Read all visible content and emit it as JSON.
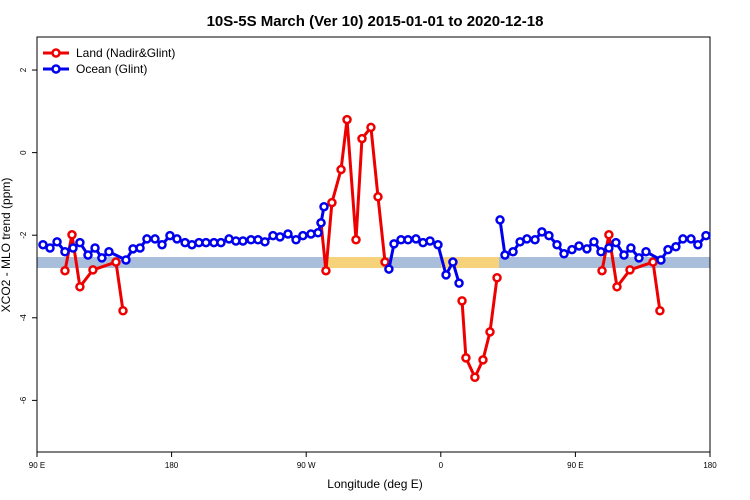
{
  "chart_data": {
    "type": "line",
    "title": "10S-5S March (Ver 10)   2015-01-01 to 2020-12-18",
    "xlabel": "Longitude (deg E)",
    "ylabel": "XCO2 - MLO trend (ppm)",
    "xlim": [
      90,
      540
    ],
    "ylim": [
      -7.25,
      2.8
    ],
    "xticks": [
      {
        "value": 90,
        "label": "90 E"
      },
      180,
      {
        "value": 270,
        "label": "90 W"
      },
      {
        "value": 360,
        "label": "0"
      },
      {
        "value": 450,
        "label": "90 E"
      },
      {
        "value": 540,
        "label": "180"
      }
    ],
    "yticks": [
      -6,
      -4,
      -2,
      0,
      2
    ],
    "legend": "top-left",
    "series": [
      {
        "name": "Land (Nadir&Glint)",
        "color": "#ee0000",
        "x": [
          108.7,
          113.4,
          118.7,
          127.4,
          142.8,
          147.5,
          null,
          279.9,
          283.2,
          287.2,
          293.3,
          297.3,
          303.3,
          307.3,
          313.3,
          318.0,
          322.7,
          null,
          374.2,
          376.8,
          382.8,
          388.2,
          392.9,
          397.6,
          null,
          467.8,
          472.4,
          477.8,
          486.5,
          501.9,
          506.5
        ],
        "values": [
          -2.86,
          -1.99,
          -3.25,
          -2.84,
          -2.65,
          -3.83,
          null,
          -1.7,
          -2.86,
          -1.21,
          -0.41,
          0.8,
          -2.11,
          0.34,
          0.61,
          -1.07,
          -2.65,
          null,
          -3.59,
          -4.97,
          -5.44,
          -5.02,
          -4.34,
          -3.03,
          null,
          -2.86,
          -1.99,
          -3.25,
          -2.84,
          -2.65,
          -3.83
        ]
      },
      {
        "name": "Ocean (Glint)",
        "color": "#0000ee",
        "x": [
          94.0,
          98.7,
          103.4,
          108.7,
          114.1,
          118.7,
          124.1,
          128.8,
          133.4,
          138.1,
          149.5,
          154.2,
          158.9,
          163.5,
          168.9,
          173.6,
          178.9,
          183.6,
          189.0,
          193.6,
          198.3,
          203.0,
          208.3,
          213.0,
          218.4,
          223.0,
          227.7,
          233.1,
          237.8,
          242.4,
          247.8,
          252.5,
          257.8,
          263.2,
          267.8,
          273.2,
          277.9,
          279.9,
          281.9,
          null,
          325.3,
          328.7,
          333.4,
          338.1,
          343.4,
          348.1,
          352.8,
          358.1,
          363.5,
          368.1,
          372.2,
          null,
          399.6,
          402.9,
          408.3,
          413.0,
          417.6,
          423.0,
          427.6,
          432.3,
          437.7,
          442.4,
          447.7,
          452.4,
          457.7,
          462.4,
          467.1,
          472.4,
          477.1,
          482.5,
          487.1,
          492.5,
          497.2,
          507.2,
          511.9,
          517.2,
          521.9,
          527.3,
          531.9,
          537.3
        ],
        "values": [
          -2.23,
          -2.31,
          -2.16,
          -2.4,
          -2.31,
          -2.18,
          -2.48,
          -2.31,
          -2.55,
          -2.4,
          -2.6,
          -2.33,
          -2.31,
          -2.09,
          -2.09,
          -2.23,
          -2.01,
          -2.09,
          -2.18,
          -2.23,
          -2.18,
          -2.18,
          -2.18,
          -2.18,
          -2.09,
          -2.14,
          -2.14,
          -2.11,
          -2.11,
          -2.16,
          -2.01,
          -2.04,
          -1.97,
          -2.11,
          -2.01,
          -1.97,
          -1.94,
          -1.7,
          -1.31,
          null,
          -2.82,
          -2.21,
          -2.11,
          -2.11,
          -2.09,
          -2.18,
          -2.14,
          -2.23,
          -2.96,
          -2.65,
          -3.16,
          null,
          -1.63,
          -2.48,
          -2.4,
          -2.16,
          -2.09,
          -2.11,
          -1.92,
          -2.01,
          -2.23,
          -2.45,
          -2.35,
          -2.26,
          -2.33,
          -2.16,
          -2.4,
          -2.31,
          -2.18,
          -2.48,
          -2.31,
          -2.55,
          -2.4,
          -2.6,
          -2.35,
          -2.28,
          -2.09,
          -2.09,
          -2.23,
          -2.01
        ]
      }
    ]
  }
}
